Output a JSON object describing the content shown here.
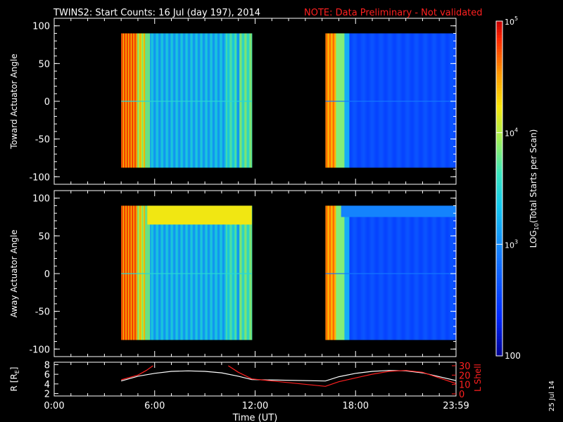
{
  "title": {
    "main": "TWINS2: Start Counts: 16 Jul (day 197), 2014",
    "note": "NOTE: Data Preliminary - Not validated",
    "note_color": "#ff2020"
  },
  "date_stamp": "25 Jul 14",
  "chart_data": [
    {
      "type": "heatmap",
      "name_id": "toward",
      "ylabel": "Toward Actuator Angle",
      "ylim": [
        -110,
        110
      ],
      "yticks": [
        100,
        50,
        0,
        -50,
        -100
      ],
      "xlim": [
        0,
        24
      ],
      "data_time_ranges": [
        [
          4,
          11.8
        ],
        [
          16.2,
          24
        ]
      ],
      "angle_range": [
        -88,
        90
      ]
    },
    {
      "type": "heatmap",
      "name_id": "away",
      "ylabel": "Away Actuator Angle",
      "ylim": [
        -110,
        110
      ],
      "yticks": [
        100,
        50,
        0,
        -50,
        -100
      ],
      "xlim": [
        0,
        24
      ],
      "data_time_ranges": [
        [
          4,
          11.8
        ],
        [
          16.2,
          24
        ]
      ],
      "angle_range": [
        -88,
        90
      ]
    },
    {
      "type": "line",
      "name_id": "orbit",
      "xlabel": "Time (UT)",
      "xticks": [
        "0:00",
        "6:00",
        "12:00",
        "18:00",
        "23:59"
      ],
      "xtick_values": [
        0,
        6,
        12,
        18,
        24
      ],
      "xlim": [
        0,
        24
      ],
      "ylabel_left": "R [R",
      "ylabel_left_sub": "E",
      "ylabel_left_close": "]",
      "ylim_left": [
        1.5,
        8.5
      ],
      "yticks_left": [
        2,
        4,
        6,
        8
      ],
      "ylabel_right": "L Shell",
      "ylim_right": [
        0,
        30
      ],
      "yticks_right": [
        0,
        10,
        20,
        30
      ],
      "right_color": "#ff2020",
      "series": [
        {
          "axis": "left",
          "color": "#ffffff",
          "x": [
            4,
            5,
            6,
            7,
            8,
            9,
            10,
            11,
            11.8,
            16.2,
            17,
            18,
            19,
            20,
            21,
            22,
            23,
            24
          ],
          "y": [
            4.6,
            5.6,
            6.2,
            6.6,
            6.7,
            6.6,
            6.3,
            5.6,
            4.9,
            4.6,
            5.5,
            6.2,
            6.6,
            6.8,
            6.7,
            6.3,
            5.5,
            4.7
          ]
        },
        {
          "axis": "right",
          "color": "#ff2020",
          "x": [
            4,
            5,
            5.5,
            5.9
          ],
          "y": [
            15,
            20,
            25,
            30
          ]
        },
        {
          "axis": "right",
          "color": "#ff2020",
          "x": [
            10.4,
            11,
            11.8,
            16.2,
            17,
            18,
            19,
            20,
            21,
            22,
            23,
            24
          ],
          "y": [
            30,
            23,
            16,
            8,
            13,
            17,
            21,
            24,
            25,
            23,
            17,
            11
          ]
        }
      ]
    }
  ],
  "colorbar": {
    "label": "LOG",
    "label_sub": "10",
    "label_rest": "(Total Starts per Scan)",
    "ticks": [
      {
        "base": "10",
        "exp": "5",
        "value": 5
      },
      {
        "base": "10",
        "exp": "4",
        "value": 4
      },
      {
        "base": "10",
        "exp": "3",
        "value": 3
      }
    ],
    "bottom_label": "100",
    "range": [
      2,
      5
    ]
  }
}
